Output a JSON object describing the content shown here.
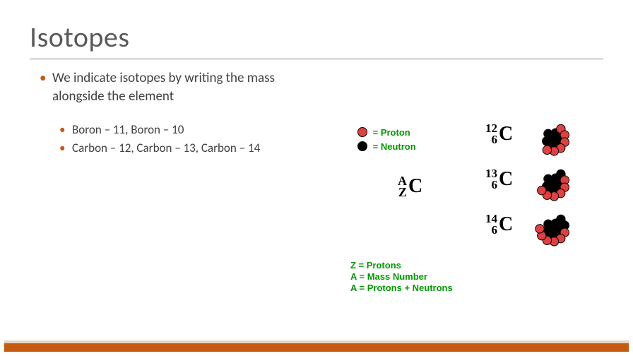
{
  "title": "Isotopes",
  "bullets": {
    "main": "We indicate isotopes by writing the mass alongside the element",
    "sub1": "Boron – 11, Boron – 10",
    "sub2": "Carbon – 12, Carbon – 13, Carbon – 14"
  },
  "legend": {
    "proton_label": "= Proton",
    "neutron_label": "= Neutron",
    "z_label": "Z = Protons",
    "a_label": "A = Mass Number",
    "a2_label": "A = Protons + Neutrons"
  },
  "notation_generic": {
    "top": "A",
    "bottom": "Z",
    "symbol": "C"
  },
  "isotopes": [
    {
      "mass": "12",
      "z": "6",
      "symbol": "C",
      "protons": 6,
      "neutrons": 6
    },
    {
      "mass": "13",
      "z": "6",
      "symbol": "C",
      "protons": 6,
      "neutrons": 7
    },
    {
      "mass": "14",
      "z": "6",
      "symbol": "C",
      "protons": 6,
      "neutrons": 8
    }
  ],
  "colors": {
    "proton_fill": "#e04040",
    "neutron_fill": "#000000",
    "green_text": "#009900",
    "accent": "#c55a11",
    "title": "#595959"
  },
  "fonts": {
    "title_size_pt": 30,
    "body_size_pt": 14,
    "notation_symbol_pt": 21,
    "legend_pt": 10
  }
}
